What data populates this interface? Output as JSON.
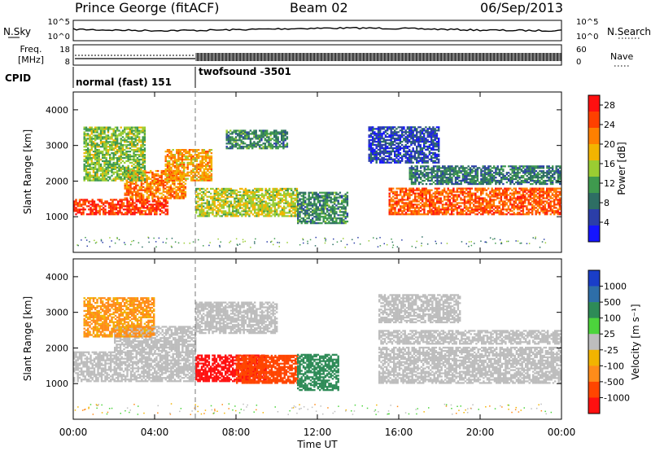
{
  "header": {
    "title": "Prince George (fitACF)",
    "beam": "Beam 02",
    "date": "06/Sep/2013"
  },
  "noise_panel": {
    "left_label": "N.Sky",
    "right_label": "N.Search",
    "left_ticks": [
      "10^5",
      "10^0"
    ],
    "right_ticks": [
      "10^5",
      "10^0"
    ]
  },
  "freq_panel": {
    "left_label_1": "Freq.",
    "left_label_2": "[MHz]",
    "right_label": "Nave",
    "left_ticks": [
      "18",
      "8"
    ],
    "right_ticks": [
      "60",
      "0"
    ]
  },
  "cpid_panel": {
    "label": "CPID",
    "modes": [
      {
        "name": "normal (fast) 151",
        "start_hour": 0,
        "end_hour": 6
      },
      {
        "name": "twofsound -3501",
        "start_hour": 6,
        "end_hour": 24
      }
    ]
  },
  "x_axis": {
    "label": "Time UT",
    "ticks": [
      "00:00",
      "04:00",
      "08:00",
      "12:00",
      "16:00",
      "20:00",
      "00:00"
    ]
  },
  "colors": {
    "power": [
      "#1515ff",
      "#2b3ea8",
      "#2e6e64",
      "#3f9a4e",
      "#9acd32",
      "#f2b400",
      "#ff8000",
      "#ff4000",
      "#ff1010"
    ],
    "velocity": [
      "#ff1010",
      "#ff4500",
      "#ff8c1a",
      "#f2b400",
      "#bdbdbd",
      "#4cd43c",
      "#2e8b57",
      "#2e6ea8",
      "#1a3ec8"
    ]
  },
  "chart_data": [
    {
      "type": "heatmap",
      "panel": "power",
      "xlabel": "Time UT",
      "ylabel": "Slant Range [km]",
      "xlim": [
        0,
        24
      ],
      "ylim": [
        0,
        4500
      ],
      "y_ticks": [
        "1000",
        "2000",
        "3000",
        "4000"
      ],
      "colorbar_label": "Power [dB]",
      "colorbar_ticks": [
        "4",
        "8",
        "12",
        "16",
        "20",
        "24",
        "28"
      ],
      "colorbar_range": [
        0,
        30
      ],
      "bands": [
        {
          "t0": 0,
          "t1": 4.6,
          "r0": 1050,
          "r1": 1500,
          "value": 26
        },
        {
          "t0": 2.5,
          "t1": 5.5,
          "r0": 1500,
          "r1": 2300,
          "value": 22
        },
        {
          "t0": 0.5,
          "t1": 3.5,
          "r0": 2000,
          "r1": 3500,
          "value": 14
        },
        {
          "t0": 4.5,
          "t1": 6.8,
          "r0": 2000,
          "r1": 2900,
          "value": 20
        },
        {
          "t0": 6,
          "t1": 11,
          "r0": 1000,
          "r1": 1800,
          "value": 16
        },
        {
          "t0": 11,
          "t1": 13.5,
          "r0": 800,
          "r1": 1700,
          "value": 10
        },
        {
          "t0": 15.5,
          "t1": 24,
          "r0": 1050,
          "r1": 1800,
          "value": 24
        },
        {
          "t0": 16.5,
          "t1": 24,
          "r0": 1900,
          "r1": 2400,
          "value": 9
        },
        {
          "t0": 14.5,
          "t1": 18,
          "r0": 2500,
          "r1": 3500,
          "value": 5
        },
        {
          "t0": 7.5,
          "t1": 10.5,
          "r0": 2900,
          "r1": 3400,
          "value": 10
        }
      ]
    },
    {
      "type": "heatmap",
      "panel": "velocity",
      "xlabel": "Time UT",
      "ylabel": "Slant Range [km]",
      "xlim": [
        0,
        24
      ],
      "ylim": [
        0,
        4500
      ],
      "y_ticks": [
        "1000",
        "2000",
        "3000",
        "4000"
      ],
      "colorbar_label": "Velocity [m s⁻¹]",
      "colorbar_ticks": [
        "1000",
        "500",
        "100",
        "25",
        "-25",
        "-100",
        "-500",
        "-1000"
      ],
      "bands": [
        {
          "t0": 0,
          "t1": 6,
          "r0": 1050,
          "r1": 1900,
          "value": 0
        },
        {
          "t0": 2,
          "t1": 6,
          "r0": 1900,
          "r1": 2600,
          "value": 0
        },
        {
          "t0": 0.5,
          "t1": 4,
          "r0": 2300,
          "r1": 3400,
          "value": -60
        },
        {
          "t0": 6,
          "t1": 9.5,
          "r0": 1050,
          "r1": 1800,
          "value": -700
        },
        {
          "t0": 8,
          "t1": 11,
          "r0": 1000,
          "r1": 1800,
          "value": -200
        },
        {
          "t0": 11,
          "t1": 13,
          "r0": 800,
          "r1": 1800,
          "value": 300
        },
        {
          "t0": 6,
          "t1": 10,
          "r0": 2400,
          "r1": 3300,
          "value": 0
        },
        {
          "t0": 15,
          "t1": 24,
          "r0": 1000,
          "r1": 2000,
          "value": 0
        },
        {
          "t0": 15,
          "t1": 24,
          "r0": 2100,
          "r1": 2500,
          "value": 0
        },
        {
          "t0": 15,
          "t1": 19,
          "r0": 2700,
          "r1": 3500,
          "value": 0
        }
      ]
    }
  ]
}
